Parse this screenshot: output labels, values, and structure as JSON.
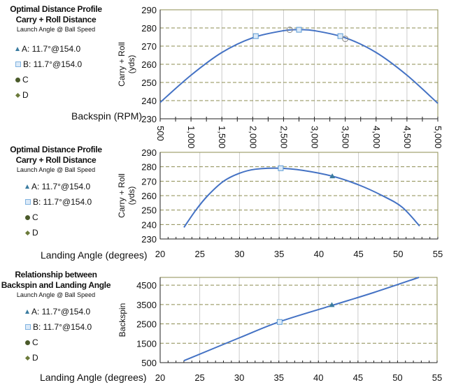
{
  "colors": {
    "line": "#4472c4",
    "tri": "#3a7ba0",
    "sq": "#7fb2e0",
    "c": "#4a5a2a",
    "d": "#6b7a3a",
    "grid": "#8c8c50",
    "vgrid": "#cccccc"
  },
  "panels": [
    {
      "title1": "Optimal Distance Profile",
      "title2": "Carry + Roll Distance",
      "subtitle": "Launch Angle @ Ball Speed",
      "legend": [
        "A: 11.7°@154.0",
        "B: 11.7°@154.0",
        "C",
        "D"
      ],
      "xtitle": "Backspin (RPM)"
    },
    {
      "title1": "Optimal Distance Profile",
      "title2": "Carry + Roll Distance",
      "subtitle": "Launch Angle @ Ball Speed",
      "legend": [
        "A: 11.7°@154.0",
        "B: 11.7°@154.0",
        "C",
        "D"
      ],
      "xtitle": "Landing Angle (degrees)"
    },
    {
      "title1": "Relationship between",
      "title2": "Backspin and Landing Angle",
      "subtitle": "Launch Angle @ Ball Speed",
      "legend": [
        "A: 11.7°@154.0",
        "B: 11.7°@154.0",
        "C",
        "D"
      ],
      "xtitle": "Landing Angle (degrees)"
    }
  ],
  "chart_data": [
    {
      "type": "line",
      "xlabel": "Backspin (RPM)",
      "ylabel": "Carry + Roll (yds)",
      "xlim": [
        500,
        5000
      ],
      "ylim": [
        230,
        290
      ],
      "xticks": [
        "500",
        "1,000",
        "1,500",
        "2,000",
        "2,500",
        "3,000",
        "3,500",
        "4,000",
        "4,500",
        "5,000"
      ],
      "xtickvals": [
        500,
        1000,
        1500,
        2000,
        2500,
        3000,
        3500,
        4000,
        4500,
        5000
      ],
      "yticks": [
        230,
        240,
        250,
        260,
        270,
        280,
        290
      ],
      "curve": {
        "x": [
          500,
          1000,
          1500,
          2000,
          2500,
          2750,
          3000,
          3500,
          4000,
          4500,
          5000
        ],
        "y": [
          239,
          254,
          266.5,
          274.6,
          278.5,
          279,
          278.5,
          274.6,
          266.5,
          254,
          238.5
        ]
      },
      "markers": [
        {
          "shape": "square",
          "x": 2050,
          "y": 275.5
        },
        {
          "shape": "square",
          "x": 2750,
          "y": 279
        },
        {
          "shape": "square",
          "x": 3420,
          "y": 275.5
        },
        {
          "shape": "circle",
          "x": 2600,
          "y": 279
        },
        {
          "shape": "circle",
          "x": 3500,
          "y": 274
        }
      ]
    },
    {
      "type": "line",
      "xlabel": "Landing Angle (degrees)",
      "ylabel": "Carry + Roll (yds)",
      "xlim": [
        20,
        55
      ],
      "ylim": [
        230,
        290
      ],
      "xticks": [
        "20",
        "25",
        "30",
        "35",
        "40",
        "45",
        "50",
        "55"
      ],
      "xtickvals": [
        20,
        25,
        30,
        35,
        40,
        45,
        50,
        55
      ],
      "yticks": [
        230,
        240,
        250,
        260,
        270,
        280,
        290
      ],
      "curve": {
        "x": [
          23,
          24.5,
          26,
          28,
          30,
          32,
          35,
          38,
          41.7,
          45,
          48,
          50.5,
          52.7
        ],
        "y": [
          238,
          250,
          260,
          270,
          275.5,
          278.3,
          279,
          277.5,
          273.5,
          267.5,
          260,
          252,
          239
        ]
      },
      "markers": [
        {
          "shape": "square",
          "x": 35.2,
          "y": 279
        },
        {
          "shape": "triangle",
          "x": 41.7,
          "y": 273.5
        }
      ]
    },
    {
      "type": "line",
      "xlabel": "Landing Angle (degrees)",
      "ylabel": "Backspin",
      "xlim": [
        20,
        55
      ],
      "ylim": [
        500,
        4900
      ],
      "xticks": [
        "20",
        "25",
        "30",
        "35",
        "40",
        "45",
        "50",
        "55"
      ],
      "xtickvals": [
        20,
        25,
        30,
        35,
        40,
        45,
        50,
        55
      ],
      "yticks": [
        500,
        1500,
        2500,
        3500,
        4500
      ],
      "curve": {
        "x": [
          23,
          30,
          35,
          41.7,
          47,
          52.7
        ],
        "y": [
          600,
          1780,
          2600,
          3450,
          4120,
          4900
        ]
      },
      "markers": [
        {
          "shape": "square",
          "x": 35.1,
          "y": 2600
        },
        {
          "shape": "triangle",
          "x": 41.7,
          "y": 3480
        }
      ]
    }
  ]
}
